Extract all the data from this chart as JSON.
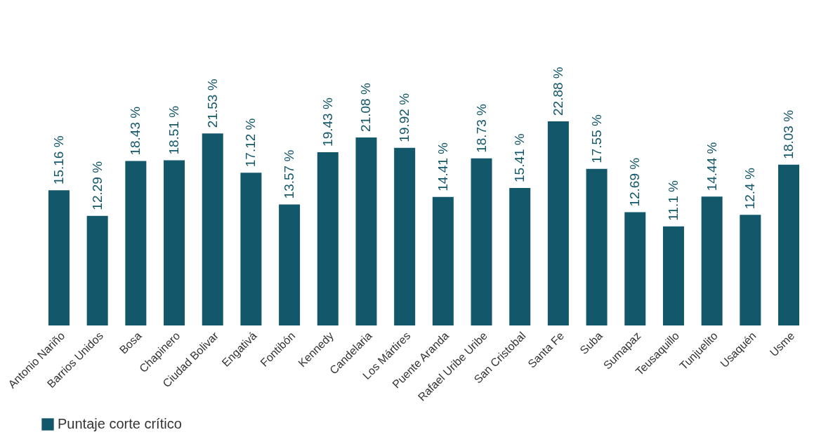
{
  "chart_data": {
    "type": "bar",
    "categories": [
      "Antonio Nariño",
      "Barrios Unidos",
      "Bosa",
      "Chapinero",
      "Ciudad Bolivar",
      "Engativá",
      "Fontibón",
      "Kennedy",
      "Candelaria",
      "Los Mártires",
      "Puente Aranda",
      "Rafael Uribe Uribe",
      "San Cristobal",
      "Santa Fe",
      "Suba",
      "Sumapaz",
      "Teusaquillo",
      "Tunjuelito",
      "Usaquén",
      "Usme"
    ],
    "series": [
      {
        "name": "Puntaje corte crítico",
        "color": "#13576a",
        "values": [
          15.16,
          12.29,
          18.43,
          18.51,
          21.53,
          17.12,
          13.57,
          19.43,
          21.08,
          19.92,
          14.41,
          18.73,
          15.41,
          22.88,
          17.55,
          12.69,
          11.1,
          14.44,
          12.4,
          18.03
        ],
        "value_labels": [
          "15.16 %",
          "12.29 %",
          "18.43 %",
          "18.51 %",
          "21.53 %",
          "17.12 %",
          "13.57 %",
          "19.43 %",
          "21.08 %",
          "19.92 %",
          "14.41 %",
          "18.73 %",
          "15.41 %",
          "22.88 %",
          "17.55 %",
          "12.69 %",
          "11.1 %",
          "14.44 %",
          "12.4 %",
          "18.03 %"
        ]
      }
    ],
    "legend": "bottom"
  }
}
